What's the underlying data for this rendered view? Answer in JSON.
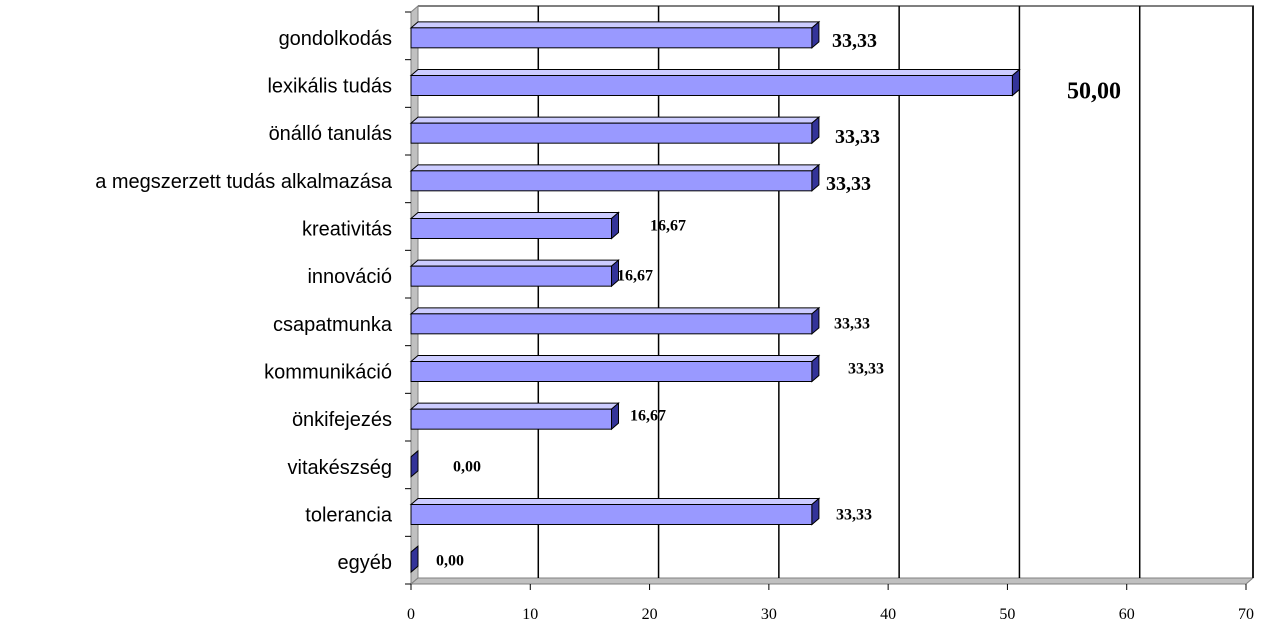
{
  "chart_data": {
    "type": "bar",
    "orientation": "horizontal",
    "categories": [
      "gondolkodás",
      "lexikális tudás",
      "önálló tanulás",
      "a megszerzett tudás alkalmazása",
      "kreativitás",
      "innováció",
      "csapatmunka",
      "kommunikáció",
      "önkifejezés",
      "vitakészség",
      "tolerancia",
      "egyéb"
    ],
    "values": [
      33.33,
      50.0,
      33.33,
      33.33,
      16.67,
      16.67,
      33.33,
      33.33,
      16.67,
      0.0,
      33.33,
      0.0
    ],
    "data_labels": [
      "33,33",
      "50,00",
      "33,33",
      "33,33",
      "16,67",
      "16,67",
      "33,33",
      "33,33",
      "16,67",
      "0,00",
      "33,33",
      "0,00"
    ],
    "xlim": [
      0,
      70
    ],
    "x_ticks": [
      0,
      10,
      20,
      30,
      40,
      50,
      60,
      70
    ],
    "x_tick_labels": [
      "0",
      "10",
      "20",
      "30",
      "40",
      "50",
      "60",
      "70"
    ],
    "grid": "vertical",
    "legend": "none",
    "style": "3d",
    "colors": {
      "bar_face": "#9999ff",
      "bar_side": "#333399",
      "bar_top": "#ccccff",
      "wall": "#c0c0c0",
      "axis": "#000000"
    }
  }
}
